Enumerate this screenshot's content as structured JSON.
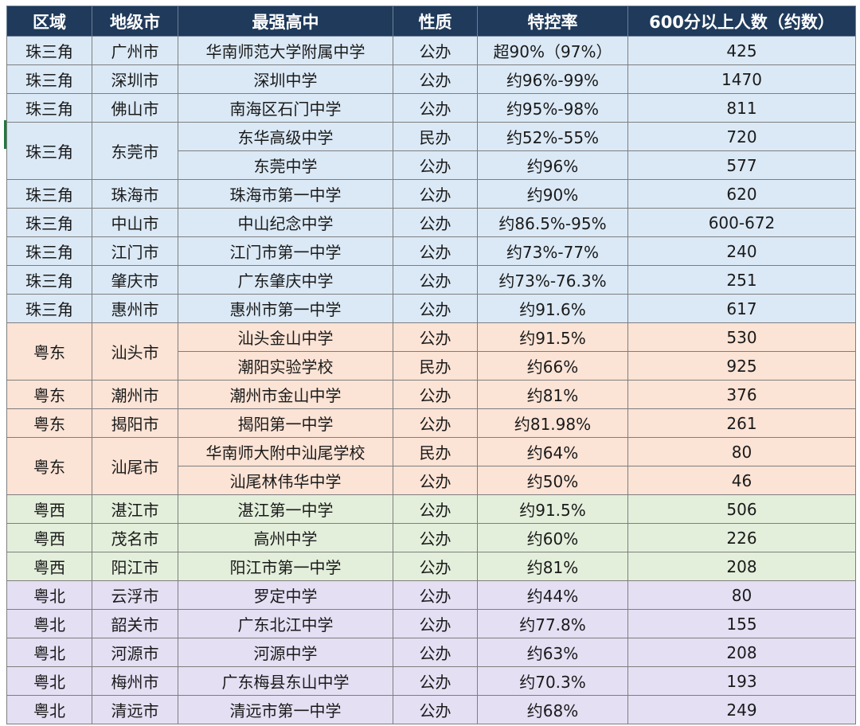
{
  "headers": [
    "区域",
    "地级市",
    "最强高中",
    "性质",
    "特控率",
    "600分以上人数（约数）"
  ],
  "colors": {
    "header_bg": "#1f3a5b",
    "珠三角": "#dbe9f6",
    "粤东": "#fbe3d5",
    "粤西": "#e3efdb",
    "粤北": "#e4dff3"
  },
  "rows": [
    {
      "region": "珠三角",
      "city": "广州市",
      "school": "华南师范大学附属中学",
      "type": "公办",
      "rate": "超90%（97%）",
      "count": "425",
      "rspan": 1,
      "cspan": 1
    },
    {
      "region": "珠三角",
      "city": "深圳市",
      "school": "深圳中学",
      "type": "公办",
      "rate": "约96%-99%",
      "count": "1470",
      "rspan": 1,
      "cspan": 1
    },
    {
      "region": "珠三角",
      "city": "佛山市",
      "school": "南海区石门中学",
      "type": "公办",
      "rate": "约95%-98%",
      "count": "811",
      "rspan": 1,
      "cspan": 1
    },
    {
      "region": "珠三角",
      "city": "东莞市",
      "school": "东华高级中学",
      "type": "民办",
      "rate": "约52%-55%",
      "count": "720",
      "rspan": 2,
      "cspan": 2
    },
    {
      "region": "珠三角",
      "city": "东莞市",
      "school": "东莞中学",
      "type": "公办",
      "rate": "约96%",
      "count": "577",
      "rspan": 0,
      "cspan": 0
    },
    {
      "region": "珠三角",
      "city": "珠海市",
      "school": "珠海市第一中学",
      "type": "公办",
      "rate": "约90%",
      "count": "620",
      "rspan": 1,
      "cspan": 1
    },
    {
      "region": "珠三角",
      "city": "中山市",
      "school": "中山纪念中学",
      "type": "公办",
      "rate": "约86.5%-95%",
      "count": "600-672",
      "rspan": 1,
      "cspan": 1
    },
    {
      "region": "珠三角",
      "city": "江门市",
      "school": "江门市第一中学",
      "type": "公办",
      "rate": "约73%-77%",
      "count": "240",
      "rspan": 1,
      "cspan": 1
    },
    {
      "region": "珠三角",
      "city": "肇庆市",
      "school": "广东肇庆中学",
      "type": "公办",
      "rate": "约73%-76.3%",
      "count": "251",
      "rspan": 1,
      "cspan": 1
    },
    {
      "region": "珠三角",
      "city": "惠州市",
      "school": "惠州市第一中学",
      "type": "公办",
      "rate": "约91.6%",
      "count": "617",
      "rspan": 1,
      "cspan": 1
    },
    {
      "region": "粤东",
      "city": "汕头市",
      "school": "汕头金山中学",
      "type": "公办",
      "rate": "约91.5%",
      "count": "530",
      "rspan": 2,
      "cspan": 2
    },
    {
      "region": "粤东",
      "city": "汕头市",
      "school": "潮阳实验学校",
      "type": "民办",
      "rate": "约66%",
      "count": "925",
      "rspan": 0,
      "cspan": 0
    },
    {
      "region": "粤东",
      "city": "潮州市",
      "school": "潮州市金山中学",
      "type": "公办",
      "rate": "约81%",
      "count": "376",
      "rspan": 1,
      "cspan": 1
    },
    {
      "region": "粤东",
      "city": "揭阳市",
      "school": "揭阳第一中学",
      "type": "公办",
      "rate": "约81.98%",
      "count": "261",
      "rspan": 1,
      "cspan": 1
    },
    {
      "region": "粤东",
      "city": "汕尾市",
      "school": "华南师大附中汕尾学校",
      "type": "民办",
      "rate": "约64%",
      "count": "80",
      "rspan": 2,
      "cspan": 2
    },
    {
      "region": "粤东",
      "city": "汕尾市",
      "school": "汕尾林伟华中学",
      "type": "公办",
      "rate": "约50%",
      "count": "46",
      "rspan": 0,
      "cspan": 0
    },
    {
      "region": "粤西",
      "city": "湛江市",
      "school": "湛江第一中学",
      "type": "公办",
      "rate": "约91.5%",
      "count": "506",
      "rspan": 1,
      "cspan": 1
    },
    {
      "region": "粤西",
      "city": "茂名市",
      "school": "高州中学",
      "type": "公办",
      "rate": "约60%",
      "count": "226",
      "rspan": 1,
      "cspan": 1
    },
    {
      "region": "粤西",
      "city": "阳江市",
      "school": "阳江市第一中学",
      "type": "公办",
      "rate": "约81%",
      "count": "208",
      "rspan": 1,
      "cspan": 1
    },
    {
      "region": "粤北",
      "city": "云浮市",
      "school": "罗定中学",
      "type": "公办",
      "rate": "约44%",
      "count": "80",
      "rspan": 1,
      "cspan": 1
    },
    {
      "region": "粤北",
      "city": "韶关市",
      "school": "广东北江中学",
      "type": "公办",
      "rate": "约77.8%",
      "count": "155",
      "rspan": 1,
      "cspan": 1
    },
    {
      "region": "粤北",
      "city": "河源市",
      "school": "河源中学",
      "type": "公办",
      "rate": "约63%",
      "count": "208",
      "rspan": 1,
      "cspan": 1
    },
    {
      "region": "粤北",
      "city": "梅州市",
      "school": "广东梅县东山中学",
      "type": "公办",
      "rate": "约70.3%",
      "count": "193",
      "rspan": 1,
      "cspan": 1
    },
    {
      "region": "粤北",
      "city": "清远市",
      "school": "清远市第一中学",
      "type": "公办",
      "rate": "约68%",
      "count": "249",
      "rspan": 1,
      "cspan": 1
    }
  ]
}
